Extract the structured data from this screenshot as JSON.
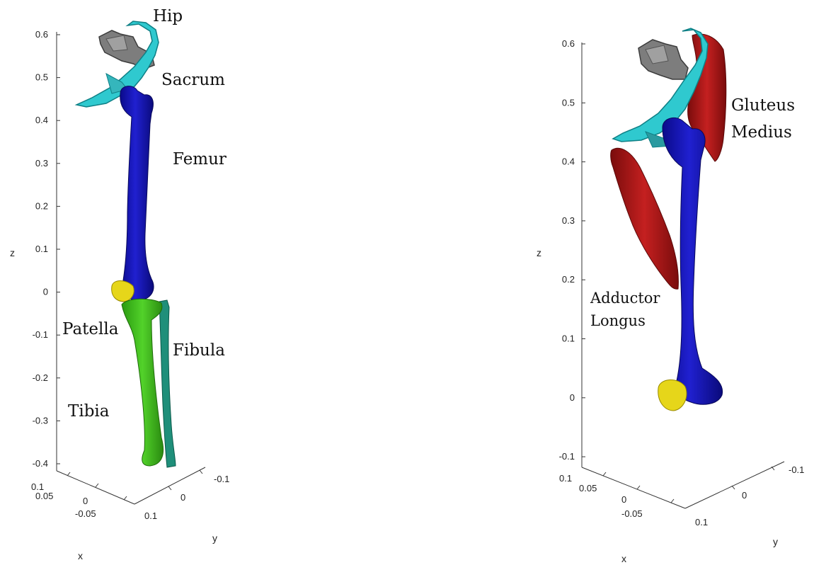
{
  "panels": [
    {
      "id": "left",
      "z_ticks": [
        "0.6",
        "0.5",
        "0.4",
        "0.3",
        "0.2",
        "0.1",
        "0",
        "-0.1",
        "-0.2",
        "-0.3",
        "-0.4"
      ],
      "x_ticks": [
        "0.1",
        "0.05",
        "0",
        "-0.05"
      ],
      "y_ticks": [
        "-0.1",
        "0",
        "0.1"
      ],
      "axis_labels": {
        "x": "x",
        "y": "y",
        "z": "z"
      },
      "labels": {
        "hip": "Hip",
        "sacrum": "Sacrum",
        "femur": "Femur",
        "patella": "Patella",
        "fibula": "Fibula",
        "tibia": "Tibia"
      }
    },
    {
      "id": "right",
      "z_ticks": [
        "0.6",
        "0.5",
        "0.4",
        "0.3",
        "0.2",
        "0.1",
        "0",
        "-0.1"
      ],
      "x_ticks": [
        "0.1",
        "0.05",
        "0",
        "-0.05"
      ],
      "y_ticks": [
        "-0.1",
        "0",
        "0.1"
      ],
      "axis_labels": {
        "x": "x",
        "y": "y",
        "z": "z"
      },
      "labels": {
        "gluteus_line1": "Gluteus",
        "gluteus_line2": "Medius",
        "adductor_line1": "Adductor",
        "adductor_line2": "Longus"
      }
    }
  ],
  "colors": {
    "hip": "#2fc9cf",
    "sacrum": "#8a8a8a",
    "femur": "#1414b4",
    "patella": "#e6d61a",
    "tibia": "#3fb81e",
    "fibula": "#1f8f7a",
    "muscle": "#b01818"
  }
}
